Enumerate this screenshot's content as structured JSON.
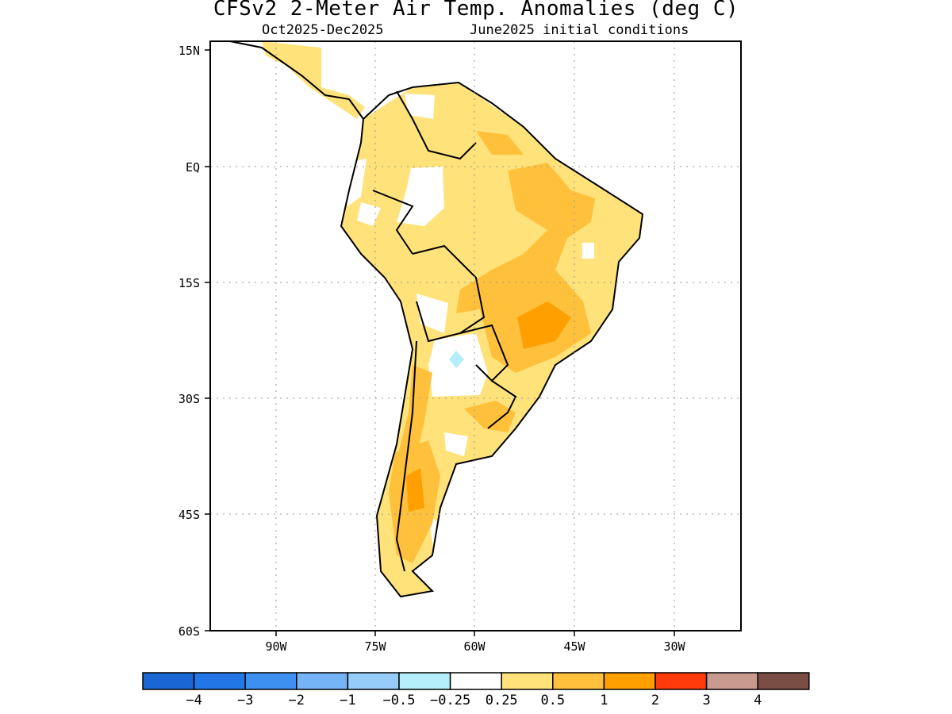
{
  "title": "CFSv2 2-Meter Air Temp. Anomalies (deg C)",
  "subtitle_left": "Oct2025-Dec2025",
  "subtitle_right": "June2025 initial conditions",
  "lat_ticks": [
    "15N",
    "EQ",
    "15S",
    "30S",
    "45S",
    "60S"
  ],
  "lon_ticks": [
    "90W",
    "75W",
    "60W",
    "45W",
    "30W"
  ],
  "colorbar": {
    "colors": [
      "#1a66d4",
      "#2276e6",
      "#3d90f0",
      "#74b4f6",
      "#96cdf8",
      "#b3eef9",
      "#ffffff",
      "#ffe27a",
      "#ffc03b",
      "#ff9f00",
      "#ff3a0b",
      "#c99a8f",
      "#7b4e45"
    ],
    "labels": [
      "-4",
      "-3",
      "-2",
      "-1",
      "-0.5",
      "-0.25",
      "0.25",
      "0.5",
      "1",
      "2",
      "3",
      "4"
    ]
  },
  "extent": {
    "lon_min": -100,
    "lon_max": -20,
    "lat_min": -60,
    "lat_max": 15
  }
}
